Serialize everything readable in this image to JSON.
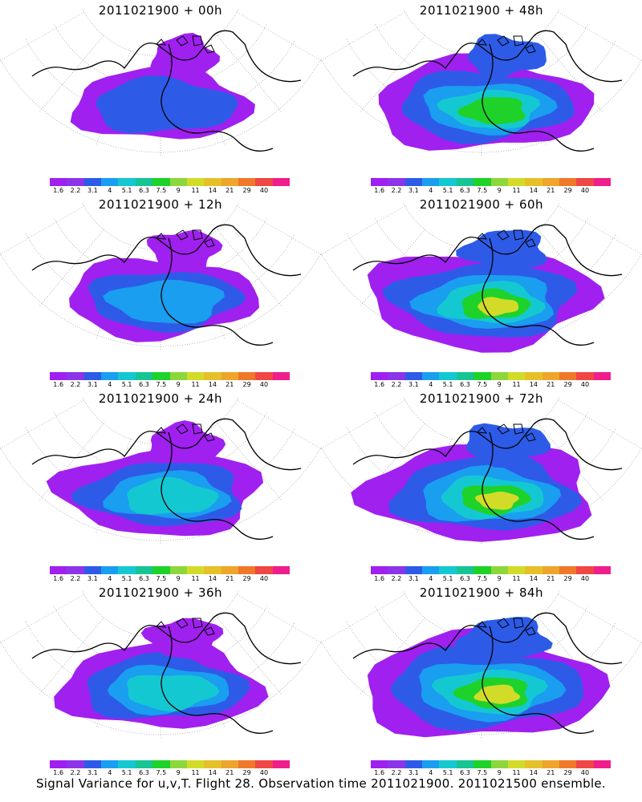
{
  "panels": [
    {
      "title": "2011021900 + 00h",
      "level": 0
    },
    {
      "title": "2011021900 + 48h",
      "level": 3
    },
    {
      "title": "2011021900 + 12h",
      "level": 1
    },
    {
      "title": "2011021900 + 60h",
      "level": 4
    },
    {
      "title": "2011021900 + 24h",
      "level": 2
    },
    {
      "title": "2011021900 + 72h",
      "level": 4
    },
    {
      "title": "2011021900 + 36h",
      "level": 2
    },
    {
      "title": "2011021900 + 84h",
      "level": 5
    }
  ],
  "colorbar": {
    "labels": [
      "1.6",
      "2.2",
      "3.1",
      "4",
      "5.1",
      "6.3",
      "7.5",
      "9",
      "11",
      "14",
      "21",
      "29",
      "40"
    ],
    "colors": [
      "#a020f0",
      "#8c35e8",
      "#2d5be8",
      "#1a9ef0",
      "#14c8d2",
      "#16c494",
      "#1ed22a",
      "#8cd73c",
      "#d2dc28",
      "#e6c028",
      "#eea52a",
      "#f0782a",
      "#f04646",
      "#f01e8c"
    ]
  },
  "footer": "Signal Variance for u,v,T. Flight 28. Observation time 2011021900. 2011021500 ensemble."
}
